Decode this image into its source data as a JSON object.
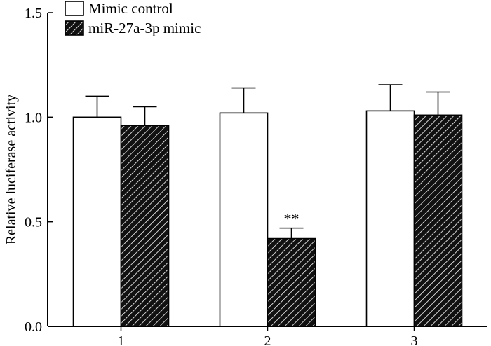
{
  "chart_data": {
    "type": "bar",
    "categories": [
      "1",
      "2",
      "3"
    ],
    "series": [
      {
        "name": "Mimic control",
        "values": [
          1.0,
          1.02,
          1.03
        ],
        "errors": [
          0.1,
          0.12,
          0.125
        ],
        "fill": "#ffffff",
        "pattern": "none"
      },
      {
        "name": "miR-27a-3p mimic",
        "values": [
          0.96,
          0.42,
          1.01
        ],
        "errors": [
          0.09,
          0.05,
          0.11
        ],
        "fill": "#111111",
        "pattern": "diagonal-hatch"
      }
    ],
    "annotations": [
      {
        "series": 1,
        "category": 1,
        "text": "**"
      }
    ],
    "title": "",
    "xlabel": "",
    "ylabel": "Relative luciferase activity",
    "ylim": [
      0,
      1.5
    ],
    "yticks": [
      0.0,
      0.5,
      1.0,
      1.5
    ],
    "ytick_labels": [
      "0.0",
      "0.5",
      "1.0",
      "1.5"
    ],
    "grid": false,
    "legend_position": "top-left"
  }
}
